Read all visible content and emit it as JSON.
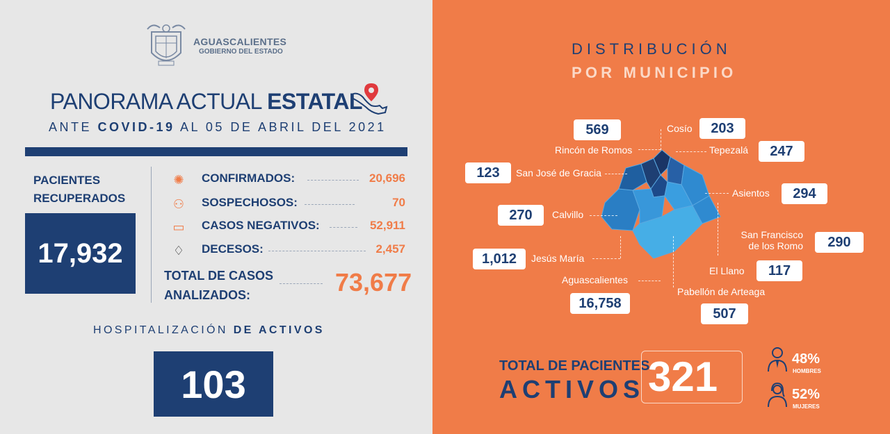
{
  "header": {
    "gov_name": "AGUASCALIENTES",
    "gov_sub": "GOBIERNO DEL ESTADO",
    "title_light": "PANORAMA ACTUAL ",
    "title_bold": "ESTATAL",
    "subtitle_pre": "ANTE ",
    "subtitle_bold": "COVID-19",
    "subtitle_post": " AL 05 DE ABRIL DEL 2021"
  },
  "recovered": {
    "label_line1": "PACIENTES",
    "label_line2": "RECUPERADOS",
    "value": "17,932"
  },
  "stats": [
    {
      "label": "CONFIRMADOS:",
      "value": "20,696",
      "icon": "virus-icon"
    },
    {
      "label": "SOSPECHOSOS:",
      "value": "70",
      "icon": "question-person-icon"
    },
    {
      "label": "CASOS NEGATIVOS:",
      "value": "52,911",
      "icon": "mask-icon"
    },
    {
      "label": "DECESOS:",
      "value": "2,457",
      "icon": "ribbon-icon"
    }
  ],
  "total_cases": {
    "label_line1": "TOTAL DE CASOS",
    "label_line2": "ANALIZADOS:",
    "value": "73,677"
  },
  "hospitalization": {
    "label_light": "HOSPITALIZACIÓN ",
    "label_bold": "DE ACTIVOS",
    "value": "103"
  },
  "distribution": {
    "title_line1": "DISTRIBUCIÓN",
    "title_line2": "POR MUNICIPIO",
    "municipalities": [
      {
        "name": "Rincón de Romos",
        "value": "569"
      },
      {
        "name": "Cosío",
        "value": "203"
      },
      {
        "name": "Tepezalá",
        "value": "247"
      },
      {
        "name": "San José de Gracia",
        "value": "123"
      },
      {
        "name": "Asientos",
        "value": "294"
      },
      {
        "name": "Calvillo",
        "value": "270"
      },
      {
        "name": "San Francisco",
        "name2": "de los Romo",
        "value": "290"
      },
      {
        "name": "Jesús María",
        "value": "1,012"
      },
      {
        "name": "El Llano",
        "value": "117"
      },
      {
        "name": "Aguascalientes",
        "value": "16,758"
      },
      {
        "name": "Pabellón de Arteaga",
        "value": "507"
      }
    ]
  },
  "active": {
    "label_line1": "TOTAL DE PACIENTES",
    "label_line2": "ACTIVOS",
    "value": "321",
    "men_pct": "48%",
    "men_label": "HOMBRES",
    "women_pct": "52%",
    "women_label": "MUJERES"
  },
  "colors": {
    "navy": "#1e3f73",
    "orange": "#f07c48",
    "background_left": "#e7e7e7"
  }
}
